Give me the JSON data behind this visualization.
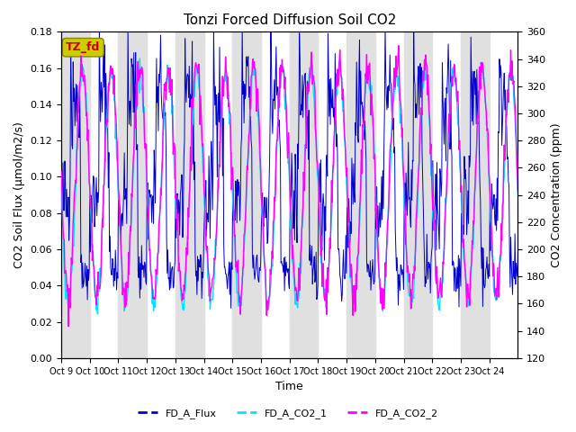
{
  "title": "Tonzi Forced Diffusion Soil CO2",
  "xlabel": "Time",
  "ylabel_left": "CO2 Soil Flux (μmol/m2/s)",
  "ylabel_right": "CO2 Concentration (ppm)",
  "ylim_left": [
    0.0,
    0.18
  ],
  "ylim_right": [
    120,
    360
  ],
  "xtick_labels": [
    "Oct 9",
    "Oct 10",
    "Oct 11",
    "Oct 12",
    "Oct 13",
    "Oct 14",
    "Oct 15",
    "Oct 16",
    "Oct 17",
    "Oct 18",
    "Oct 19",
    "Oct 20",
    "Oct 21",
    "Oct 22",
    "Oct 23",
    "Oct 24"
  ],
  "legend_labels": [
    "FD_A_Flux",
    "FD_A_CO2_1",
    "FD_A_CO2_2"
  ],
  "legend_colors": [
    "#0000cc",
    "#00e5ff",
    "#ff00ff"
  ],
  "flux_color": "#0000cc",
  "co2_1_color": "#00e5ff",
  "co2_2_color": "#ff00ff",
  "annotation_text": "TZ_fd",
  "annotation_bg": "#cccc00",
  "annotation_fg": "#cc0000",
  "bg_band_color": "#e0e0e0",
  "n_days": 16,
  "n_per_day": 48,
  "yticks_left": [
    0.0,
    0.02,
    0.04,
    0.06,
    0.08,
    0.1,
    0.12,
    0.14,
    0.16,
    0.18
  ],
  "yticks_right": [
    120,
    140,
    160,
    180,
    200,
    220,
    240,
    260,
    280,
    300,
    320,
    340,
    360
  ]
}
